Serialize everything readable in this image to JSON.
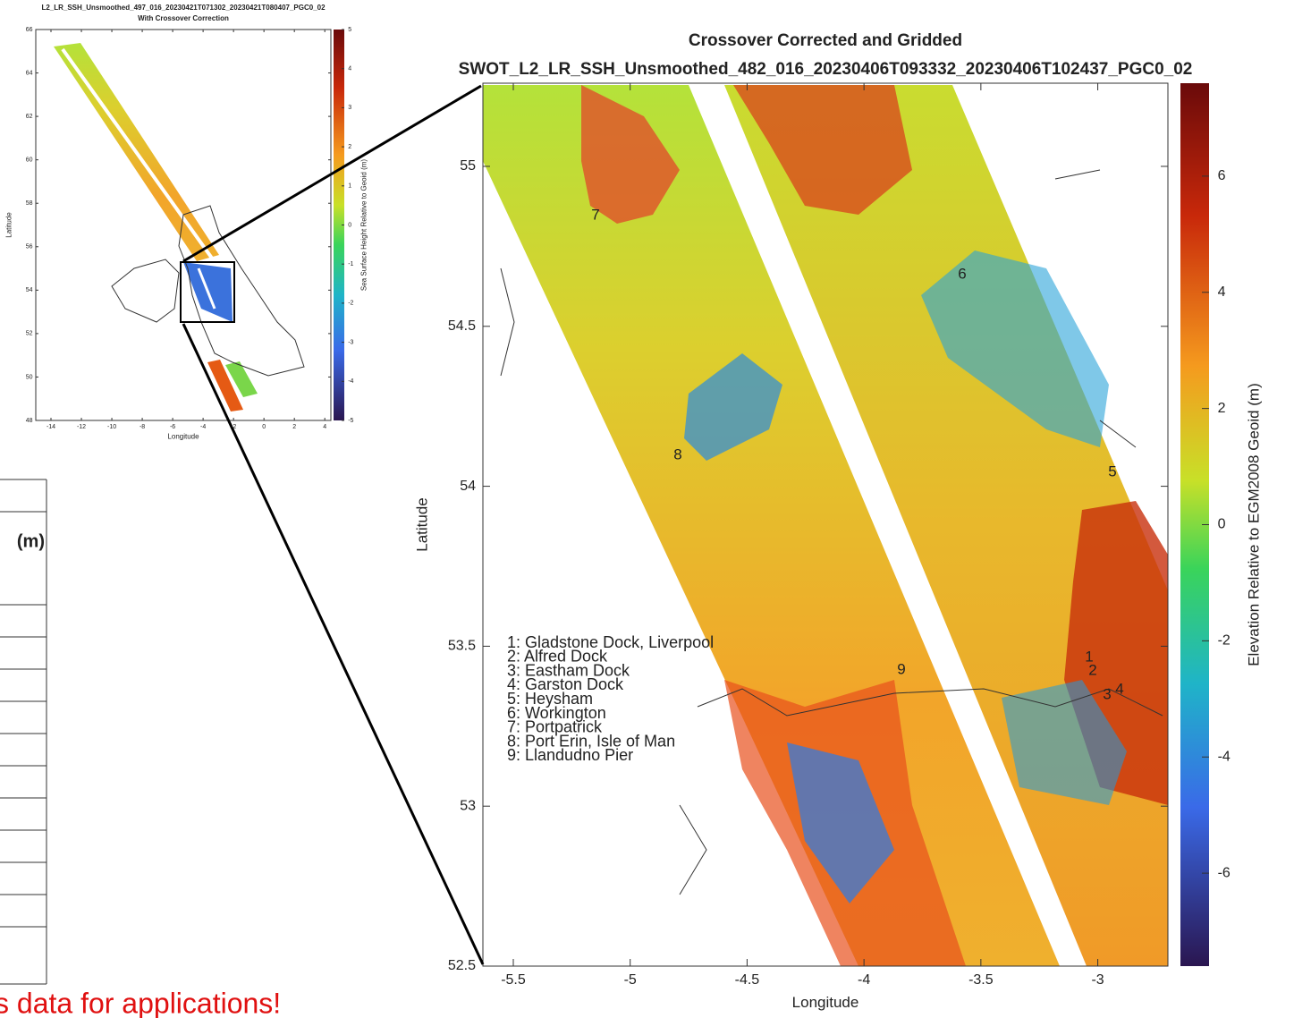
{
  "overview_map": {
    "title": [
      "L2_LR_SSH_Unsmoothed_497_016_20230421T071302_20230421T080407_PGC0_02",
      "With Crossover Correction"
    ],
    "xlabel": "Longitude",
    "ylabel": "Latitude",
    "colorbar_label": "Sea Surface Height Relative to Geoid (m)",
    "xlim": [
      -15,
      4.4
    ],
    "ylim": [
      48,
      66
    ],
    "xticks": [
      -14,
      -12,
      -10,
      -8,
      -6,
      -4,
      -2,
      0,
      2,
      4
    ],
    "yticks": [
      48,
      50,
      52,
      54,
      56,
      58,
      60,
      62,
      64,
      66
    ],
    "clim": [
      -5,
      5
    ],
    "cticks": [
      -5,
      -4,
      -3,
      -2,
      -1,
      0,
      1,
      2,
      3,
      4,
      5
    ]
  },
  "detail_map": {
    "title": [
      "Crossover Corrected and Gridded",
      "SWOT_L2_LR_SSH_Unsmoothed_482_016_20230406T093332_20230406T102437_PGC0_02"
    ],
    "xlabel": "Longitude",
    "ylabel": "Latitude",
    "colorbar_label": "Elevation Relative to EGM2008 Geoid (m)",
    "xlim": [
      -5.63,
      -2.7
    ],
    "ylim": [
      52.5,
      55.26
    ],
    "xticks": [
      -5.5,
      -5,
      -4.5,
      -4,
      -3.5,
      -3
    ],
    "yticks": [
      52.5,
      53,
      53.5,
      54,
      54.5,
      55
    ],
    "clim": [
      -7.6,
      7.6
    ],
    "cticks": [
      -6,
      -4,
      -2,
      0,
      2,
      4,
      6
    ],
    "site_labels": [
      "1",
      "2",
      "3",
      "4",
      "5",
      "6",
      "7",
      "8",
      "9"
    ],
    "legend": [
      "1: Gladstone Dock, Liverpool",
      "2: Alfred Dock",
      "3: Eastham Dock",
      "4: Garston Dock",
      "5: Heysham",
      "6: Workington",
      "7: Portpatrick",
      "8: Port Erin, Isle of Man",
      "9: Llandudno Pier"
    ]
  },
  "table": {
    "header": "(m)"
  },
  "footer_text": "s data for applications!"
}
